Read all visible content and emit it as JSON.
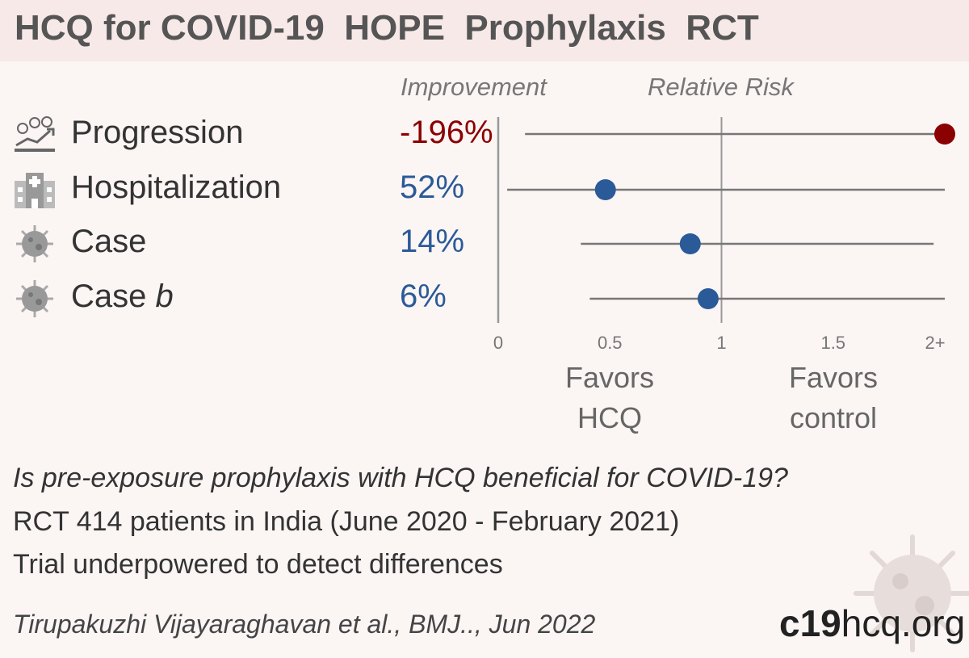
{
  "title": "HCQ for COVID-19  HOPE  Prophylaxis  RCT",
  "column_headers": {
    "improvement": "Improvement",
    "relative_risk": "Relative Risk"
  },
  "rows": [
    {
      "label": "Progression",
      "label_suffix": "",
      "improvement": "-196%",
      "icon": "progression-people-icon"
    },
    {
      "label": "Hospitalization",
      "label_suffix": "",
      "improvement": "52%",
      "icon": "hospital-icon"
    },
    {
      "label": "Case",
      "label_suffix": "",
      "improvement": "14%",
      "icon": "virus-icon"
    },
    {
      "label": "Case ",
      "label_suffix": "b",
      "improvement": "6%",
      "icon": "virus-icon"
    }
  ],
  "colors": {
    "harm": "#8b0000",
    "benefit": "#2b5a98",
    "ci_line": "#777777",
    "ref_line": "#999999"
  },
  "chart_data": {
    "type": "forest",
    "x_ticks": [
      "0",
      "0.5",
      "1",
      "1.5",
      "2+"
    ],
    "xlim": [
      0,
      2
    ],
    "reference_line": 1,
    "favors_left": [
      "Favors",
      "HCQ"
    ],
    "favors_right": [
      "Favors",
      "control"
    ],
    "series": [
      {
        "name": "Progression",
        "rr": 2.96,
        "ci": [
          0.12,
          2.0
        ],
        "color": "#8b0000"
      },
      {
        "name": "Hospitalization",
        "rr": 0.48,
        "ci": [
          0.04,
          2.0
        ],
        "color": "#2b5a98"
      },
      {
        "name": "Case",
        "rr": 0.86,
        "ci": [
          0.37,
          1.95
        ],
        "color": "#2b5a98"
      },
      {
        "name": "Case b",
        "rr": 0.94,
        "ci": [
          0.41,
          2.0
        ],
        "color": "#2b5a98"
      }
    ]
  },
  "notes": {
    "question": "Is pre-exposure prophylaxis with HCQ beneficial for COVID-19?",
    "trial": "RCT 414 patients in India (June 2020 - February 2021)",
    "power": "Trial underpowered to detect differences"
  },
  "citation": "Tirupakuzhi Vijayaraghavan et al., BMJ.., Jun 2022",
  "site": {
    "bold": "c19",
    "rest": "hcq.org"
  }
}
